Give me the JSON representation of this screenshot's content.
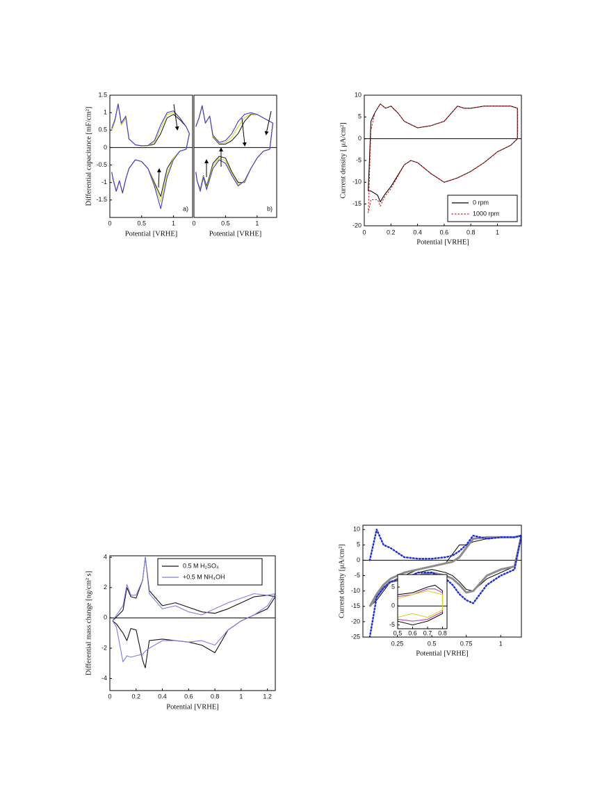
{
  "chart_data": [
    {
      "type": "line",
      "xlabel": "Potential [VRHE]",
      "ylabel": "Differential capacitance [mF/cm²]",
      "annotation": "a)",
      "xlim": [
        0,
        1.3
      ],
      "ylim": [
        -2,
        1.5
      ],
      "xticks": [
        0,
        0.5,
        1
      ],
      "yticks": [
        1.5,
        1,
        0.5,
        0,
        -0.5,
        -1,
        -1.5
      ],
      "zero_line": true,
      "x": [
        0.03,
        0.08,
        0.13,
        0.18,
        0.25,
        0.3,
        0.4,
        0.5,
        0.6,
        0.7,
        0.8,
        0.9,
        1.0,
        1.1,
        1.2,
        1.25,
        1.2,
        1.1,
        1.0,
        0.9,
        0.8,
        0.7,
        0.6,
        0.5,
        0.4,
        0.3,
        0.25,
        0.2,
        0.15,
        0.1,
        0.05,
        0.03
      ],
      "series": [
        {
          "color": "#222222",
          "values": [
            0.5,
            0.75,
            1.25,
            0.65,
            0.85,
            0.25,
            0.08,
            0.05,
            0.05,
            0.1,
            0.4,
            0.85,
            0.95,
            0.8,
            0.6,
            0.4,
            -0.05,
            -0.1,
            -0.3,
            -0.6,
            -1.4,
            -1.0,
            -0.6,
            -0.4,
            -0.35,
            -0.6,
            -0.9,
            -1.3,
            -0.95,
            -1.25,
            -0.9,
            -0.7
          ]
        },
        {
          "color": "#d8d820",
          "values": [
            0.5,
            0.75,
            1.25,
            0.65,
            0.85,
            0.25,
            0.08,
            0.05,
            0.05,
            0.15,
            0.55,
            0.95,
            1.0,
            0.85,
            0.6,
            0.4,
            -0.05,
            -0.1,
            -0.3,
            -0.75,
            -1.55,
            -1.05,
            -0.6,
            -0.4,
            -0.35,
            -0.6,
            -0.9,
            -1.3,
            -0.95,
            -1.25,
            -0.9,
            -0.7
          ]
        },
        {
          "color": "#3b3bd6",
          "values": [
            0.55,
            0.8,
            1.25,
            0.7,
            0.9,
            0.25,
            0.08,
            0.05,
            0.06,
            0.2,
            0.65,
            1.0,
            1.05,
            0.85,
            0.6,
            0.4,
            -0.05,
            -0.1,
            -0.35,
            -0.85,
            -1.75,
            -1.1,
            -0.6,
            -0.4,
            -0.35,
            -0.6,
            -0.9,
            -1.3,
            -0.95,
            -1.25,
            -0.9,
            -0.7
          ]
        }
      ]
    },
    {
      "type": "line",
      "xlabel": "Potential [VRHE]",
      "annotation": "b)",
      "xlim": [
        0,
        1.31
      ],
      "ylim": [
        -2,
        1.5
      ],
      "xticks": [
        0,
        0.5,
        1
      ],
      "zero_line": true,
      "x": [
        0.03,
        0.08,
        0.13,
        0.18,
        0.25,
        0.3,
        0.4,
        0.5,
        0.6,
        0.7,
        0.8,
        0.9,
        1.0,
        1.1,
        1.2,
        1.25,
        1.2,
        1.1,
        1.0,
        0.9,
        0.8,
        0.7,
        0.6,
        0.5,
        0.4,
        0.3,
        0.25,
        0.2,
        0.15,
        0.1,
        0.05,
        0.03
      ],
      "series": [
        {
          "color": "#222222",
          "values": [
            0.6,
            0.85,
            1.2,
            0.7,
            0.9,
            0.3,
            0.1,
            0.1,
            0.2,
            0.4,
            0.75,
            0.95,
            0.95,
            0.85,
            0.75,
            0.7,
            -0.05,
            -0.1,
            -0.3,
            -0.6,
            -1.0,
            -1.0,
            -0.7,
            -0.3,
            -0.25,
            -0.45,
            -0.8,
            -1.1,
            -0.8,
            -1.2,
            -0.95,
            -0.7
          ]
        },
        {
          "color": "#d8d820",
          "values": [
            0.6,
            0.85,
            1.2,
            0.7,
            0.9,
            0.32,
            0.12,
            0.15,
            0.3,
            0.6,
            0.85,
            0.97,
            0.95,
            0.85,
            0.75,
            0.7,
            -0.05,
            -0.1,
            -0.3,
            -0.6,
            -0.98,
            -1.05,
            -0.75,
            -0.38,
            -0.3,
            -0.52,
            -0.85,
            -1.15,
            -0.82,
            -1.22,
            -0.95,
            -0.7
          ]
        },
        {
          "color": "#3b3bd6",
          "values": [
            0.6,
            0.85,
            1.2,
            0.7,
            0.9,
            0.35,
            0.15,
            0.2,
            0.4,
            0.75,
            0.95,
            1.0,
            0.95,
            0.85,
            0.75,
            0.7,
            -0.05,
            -0.1,
            -0.3,
            -0.6,
            -0.95,
            -1.1,
            -0.8,
            -0.45,
            -0.35,
            -0.6,
            -0.9,
            -1.2,
            -0.85,
            -1.25,
            -0.95,
            -0.7
          ]
        }
      ]
    },
    {
      "type": "line",
      "xlabel": "Potential [VRHE]",
      "ylabel": "Current density [ μA/cm²]",
      "legend": "lower right",
      "xlim": [
        0,
        1.18
      ],
      "ylim": [
        -20,
        10
      ],
      "xticks": [
        0,
        0.2,
        0.4,
        0.6,
        0.8,
        1
      ],
      "yticks": [
        10,
        5,
        0,
        -5,
        -10,
        -15,
        -20
      ],
      "zero_line": true,
      "x": [
        0.03,
        0.05,
        0.08,
        0.12,
        0.16,
        0.2,
        0.25,
        0.3,
        0.4,
        0.5,
        0.6,
        0.7,
        0.75,
        0.8,
        0.9,
        1.0,
        1.1,
        1.15,
        1.15,
        1.1,
        1.0,
        0.9,
        0.8,
        0.7,
        0.6,
        0.5,
        0.4,
        0.35,
        0.3,
        0.2,
        0.15,
        0.12,
        0.1,
        0.05,
        0.03
      ],
      "series": [
        {
          "name": "0 rpm",
          "color": "#000000",
          "values": [
            -12,
            4,
            6,
            8,
            7,
            7.5,
            6,
            4,
            2.5,
            3,
            4,
            7.5,
            7,
            7,
            7.5,
            7.5,
            7.5,
            7,
            0,
            -1.5,
            -3,
            -5.5,
            -7.5,
            -9,
            -10,
            -8,
            -5.5,
            -5,
            -6,
            -11,
            -13,
            -14.5,
            -13,
            -12,
            -12
          ]
        },
        {
          "name": "1000 rpm",
          "color": "#e0191e",
          "dash": "dotted",
          "values": [
            -17,
            2,
            6,
            8,
            7,
            7.5,
            6,
            4,
            2.5,
            3,
            4,
            7.5,
            7,
            7,
            7.5,
            7.5,
            7.5,
            7,
            0,
            -1.5,
            -3,
            -5.5,
            -7.5,
            -9,
            -10,
            -8,
            -5.5,
            -5,
            -6,
            -11.5,
            -13.5,
            -15.5,
            -14,
            -14,
            -17
          ]
        }
      ]
    },
    {
      "type": "line",
      "xlabel": "Potential [VRHE]",
      "ylabel": "Differential mass change [ng/cm² s]",
      "legend": "upper center",
      "xlim": [
        0,
        1.26
      ],
      "ylim": [
        -4.8,
        4.1
      ],
      "xticks": [
        0,
        0.2,
        0.4,
        0.6,
        0.8,
        1,
        1.2
      ],
      "yticks": [
        4,
        2,
        0,
        -2,
        -4
      ],
      "zero_line": true,
      "x": [
        0.02,
        0.1,
        0.13,
        0.16,
        0.2,
        0.25,
        0.27,
        0.3,
        0.4,
        0.5,
        0.6,
        0.7,
        0.8,
        0.9,
        1.0,
        1.1,
        1.2,
        1.26,
        1.2,
        1.1,
        1.0,
        0.9,
        0.8,
        0.7,
        0.6,
        0.5,
        0.4,
        0.3,
        0.27,
        0.25,
        0.2,
        0.16,
        0.13,
        0.1,
        0.05,
        0.02
      ],
      "series": [
        {
          "name": "0.5 M H₂SO₄",
          "color": "#111111",
          "values": [
            -0.2,
            0.5,
            2.0,
            1.4,
            1.3,
            2.5,
            4.0,
            1.8,
            0.8,
            1.0,
            0.7,
            0.4,
            0.3,
            0.6,
            1.0,
            1.4,
            1.5,
            1.4,
            0.6,
            0.2,
            -0.2,
            -0.8,
            -2.3,
            -1.8,
            -1.6,
            -1.5,
            -1.4,
            -1.5,
            -3.3,
            -2.8,
            -0.8,
            -0.7,
            -1.5,
            -1.0,
            -0.4,
            -0.2
          ]
        },
        {
          "name": "+0.5 M NH₄OH",
          "color": "#7d7de6",
          "values": [
            -0.2,
            0.8,
            2.2,
            1.5,
            1.5,
            2.5,
            4.0,
            1.6,
            0.6,
            0.8,
            0.4,
            0.2,
            0.6,
            1.0,
            1.3,
            1.6,
            1.5,
            1.6,
            0.8,
            0.2,
            -0.2,
            -0.8,
            -1.8,
            -1.5,
            -1.6,
            -1.5,
            -1.5,
            -2.0,
            -2.2,
            -2.4,
            -2.5,
            -2.6,
            -2.5,
            -2.9,
            -0.6,
            -0.2
          ]
        }
      ]
    },
    {
      "type": "line",
      "xlabel": "Potential [VRHE]",
      "ylabel": "Current density [μA/cm²]",
      "xlim": [
        0,
        1.15
      ],
      "ylim": [
        -25,
        11.4
      ],
      "xticks": [
        0.25,
        0.5,
        0.75,
        1
      ],
      "yticks": [
        10,
        5,
        0,
        -5,
        -10,
        -15,
        -20,
        -25
      ],
      "zero_line": true,
      "x": [
        0.05,
        0.1,
        0.15,
        0.2,
        0.3,
        0.4,
        0.5,
        0.6,
        0.65,
        0.7,
        0.75,
        0.8,
        0.9,
        1.0,
        1.1,
        1.15,
        1.1,
        1.0,
        0.9,
        0.8,
        0.75,
        0.7,
        0.65,
        0.6,
        0.5,
        0.4,
        0.3,
        0.2,
        0.15,
        0.1,
        0.05
      ],
      "series": [
        {
          "color": "#111111",
          "values": [
            -15,
            -12,
            -9,
            -7,
            -5,
            -3,
            -2,
            -1,
            2,
            5,
            5,
            6,
            7,
            7.5,
            7.5,
            8,
            -2,
            -4,
            -6,
            -10,
            -9.5,
            -7,
            -5,
            -4,
            -3,
            -4,
            -6,
            -7,
            -10,
            -13,
            -15
          ]
        },
        {
          "color": "#8c8c8c",
          "width": 3,
          "values": [
            -15,
            -11,
            -8,
            -6,
            -4,
            -3,
            -2,
            -1,
            -0.5,
            1,
            4,
            7,
            7.5,
            7.5,
            7.5,
            8,
            -2,
            -3,
            -5,
            -10,
            -10.5,
            -8,
            -6,
            -5,
            -4,
            -5,
            -6,
            -7,
            -9,
            -12,
            -15
          ]
        },
        {
          "color": "#1f2fe0",
          "dash": "dotted",
          "width": 2.5,
          "values": [
            0,
            10,
            5,
            4,
            1,
            0.5,
            0.5,
            1,
            1.5,
            3,
            5,
            8,
            7,
            7.5,
            7.5,
            8,
            -3,
            -5,
            -8,
            -14,
            -13,
            -11,
            -8,
            -6,
            -4,
            -4,
            -6,
            -7,
            -9,
            -12,
            -25
          ]
        }
      ]
    },
    {
      "type": "line",
      "xlim": [
        0.5,
        0.83
      ],
      "ylim": [
        -6,
        8.3
      ],
      "xticks": [
        0.5,
        0.6,
        0.7,
        0.8
      ],
      "yticks": [
        5,
        0,
        -5
      ],
      "zero_line": true,
      "x": [
        0.5,
        0.6,
        0.7,
        0.75,
        0.8,
        0.8,
        0.75,
        0.7,
        0.6,
        0.5
      ],
      "series": [
        {
          "color": "#111111",
          "values": [
            3,
            3.5,
            5,
            5.5,
            4,
            -2,
            -3,
            -4,
            -5,
            -4
          ]
        },
        {
          "color": "#c040c0",
          "values": [
            2.5,
            3,
            4.5,
            4.5,
            3.5,
            -1.5,
            -2.5,
            -3.5,
            -4,
            -3.5
          ]
        },
        {
          "color": "#d8d820",
          "values": [
            2,
            3,
            4,
            3.5,
            3,
            -1,
            -2,
            -3,
            -2,
            -3
          ]
        }
      ]
    }
  ]
}
